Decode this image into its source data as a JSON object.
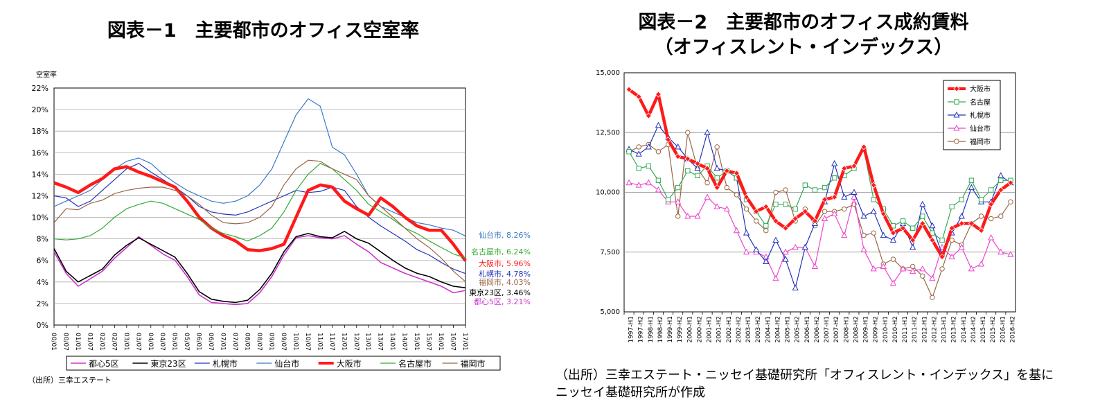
{
  "figure1": {
    "title": "図表－1　主要都市のオフィス空室率",
    "source": "（出所）三幸エステート"
  },
  "figure2": {
    "title_line1": "図表－2　主要都市のオフィス成約賃料",
    "title_line2": "（オフィスレント・インデックス）",
    "source_line1": "（出所）三幸エステート・ニッセイ基礎研究所「オフィスレント・インデックス」を基に",
    "source_line2": "ニッセイ基礎研究所が作成"
  },
  "chart_data": [
    {
      "type": "line",
      "ylabel": "空室率",
      "ylim": [
        0,
        22
      ],
      "yticks": [
        0,
        2,
        4,
        6,
        8,
        10,
        12,
        14,
        16,
        18,
        20,
        22
      ],
      "y_unit": "%",
      "x_tick_labels": [
        "00/01",
        "00/07",
        "01/01",
        "01/07",
        "02/01",
        "02/07",
        "03/01",
        "03/07",
        "04/01",
        "04/07",
        "05/01",
        "05/07",
        "06/01",
        "06/07",
        "07/01",
        "07/07",
        "08/01",
        "08/07",
        "09/01",
        "09/07",
        "10/01",
        "10/07",
        "11/01",
        "11/07",
        "12/01",
        "12/07",
        "13/01",
        "13/07",
        "14/01",
        "14/07",
        "15/01",
        "15/07",
        "16/01",
        "16/07",
        "17/01"
      ],
      "x": [
        2000.0,
        2000.5,
        2001.0,
        2001.5,
        2002.0,
        2002.5,
        2003.0,
        2003.5,
        2004.0,
        2004.5,
        2005.0,
        2005.5,
        2006.0,
        2006.5,
        2007.0,
        2007.5,
        2008.0,
        2008.5,
        2009.0,
        2009.5,
        2010.0,
        2010.5,
        2011.0,
        2011.5,
        2012.0,
        2012.5,
        2013.0,
        2013.5,
        2014.0,
        2014.5,
        2015.0,
        2015.5,
        2016.0,
        2016.5,
        2017.0
      ],
      "grid": true,
      "legend_position": "bottom",
      "end_labels": [
        "仙台市, 8.26%",
        "名古屋市, 6.24%",
        "大阪市, 5.96%",
        "札幌市, 4.78%",
        "福岡市, 4.03%",
        "東京23区, 3.46%",
        "都心5区, 3.21%"
      ],
      "series": [
        {
          "name": "都心5区",
          "color": "#cc33cc",
          "width": 1.6,
          "values": [
            6.8,
            4.8,
            3.6,
            4.3,
            5.0,
            6.2,
            7.2,
            8.2,
            7.4,
            6.6,
            6.0,
            4.5,
            2.8,
            2.1,
            2.0,
            1.9,
            2.0,
            3.0,
            4.5,
            6.5,
            8.1,
            8.3,
            8.1,
            8.0,
            8.3,
            7.5,
            6.8,
            5.8,
            5.3,
            4.8,
            4.4,
            4.0,
            3.6,
            3.0,
            3.21
          ]
        },
        {
          "name": "東京23区",
          "color": "#000000",
          "width": 1.6,
          "values": [
            7.1,
            5.0,
            4.0,
            4.6,
            5.2,
            6.5,
            7.4,
            8.1,
            7.5,
            6.9,
            6.3,
            4.8,
            3.1,
            2.4,
            2.2,
            2.1,
            2.3,
            3.3,
            4.8,
            6.8,
            8.2,
            8.5,
            8.2,
            8.1,
            8.7,
            8.0,
            7.6,
            6.8,
            6.0,
            5.3,
            4.8,
            4.5,
            4.0,
            3.6,
            3.46
          ]
        },
        {
          "name": "札幌市",
          "color": "#2233bb",
          "width": 1.2,
          "values": [
            12.0,
            11.8,
            11.0,
            11.5,
            12.5,
            13.5,
            14.5,
            15.0,
            14.2,
            13.5,
            12.8,
            12.0,
            11.0,
            10.5,
            10.3,
            10.2,
            10.5,
            11.0,
            11.5,
            12.0,
            12.5,
            12.3,
            12.4,
            12.8,
            12.5,
            11.0,
            10.0,
            9.2,
            8.5,
            7.8,
            7.0,
            6.5,
            5.8,
            5.2,
            4.78
          ]
        },
        {
          "name": "仙台市",
          "color": "#3a78c8",
          "width": 1.2,
          "values": [
            11.0,
            11.5,
            12.0,
            12.5,
            13.5,
            14.5,
            15.2,
            15.5,
            15.0,
            14.0,
            13.2,
            12.5,
            12.0,
            11.5,
            11.3,
            11.5,
            12.0,
            13.0,
            14.5,
            17.0,
            19.5,
            21.0,
            20.3,
            16.5,
            15.8,
            14.0,
            12.0,
            11.0,
            10.5,
            10.0,
            9.5,
            9.3,
            9.0,
            8.8,
            8.26
          ]
        },
        {
          "name": "大阪市",
          "color": "#ff1a1a",
          "width": 4.5,
          "values": [
            13.2,
            12.8,
            12.3,
            13.0,
            13.6,
            14.5,
            14.7,
            14.2,
            13.8,
            13.3,
            12.8,
            11.5,
            10.0,
            9.0,
            8.3,
            7.8,
            7.0,
            6.9,
            7.1,
            7.5,
            10.0,
            12.5,
            13.0,
            12.8,
            11.5,
            10.8,
            10.2,
            11.8,
            11.0,
            10.0,
            9.2,
            8.8,
            8.8,
            7.5,
            5.96
          ]
        },
        {
          "name": "名古屋市",
          "color": "#33aa33",
          "width": 1.2,
          "values": [
            8.0,
            7.9,
            8.0,
            8.3,
            9.0,
            10.0,
            10.8,
            11.2,
            11.5,
            11.3,
            10.8,
            10.3,
            9.8,
            9.0,
            8.5,
            8.2,
            7.8,
            8.3,
            9.0,
            10.5,
            12.5,
            14.0,
            15.0,
            14.5,
            13.5,
            12.5,
            11.2,
            10.5,
            9.8,
            9.0,
            8.5,
            7.8,
            7.2,
            6.6,
            6.24
          ]
        },
        {
          "name": "福岡市",
          "color": "#996644",
          "width": 1.2,
          "values": [
            9.5,
            10.8,
            10.7,
            11.3,
            11.6,
            12.2,
            12.5,
            12.7,
            12.8,
            12.8,
            12.5,
            12.0,
            11.2,
            10.2,
            9.5,
            9.4,
            9.5,
            10.0,
            11.0,
            13.0,
            14.5,
            15.3,
            15.2,
            14.5,
            14.0,
            13.5,
            12.0,
            11.0,
            10.0,
            9.0,
            8.0,
            7.2,
            6.2,
            5.0,
            4.03
          ]
        }
      ]
    },
    {
      "type": "line",
      "ylim": [
        5000,
        15000
      ],
      "yticks": [
        5000,
        7500,
        10000,
        12500,
        15000
      ],
      "ytick_labels": [
        "5,000",
        "7,500",
        "10,000",
        "12,500",
        "15,000"
      ],
      "categories": [
        "1997-H1",
        "1997-H2",
        "1998-H1",
        "1998-H2",
        "1999-H1",
        "1999-H2",
        "2000-H1",
        "2000-H2",
        "2001-H1",
        "2001-H2",
        "2002-H1",
        "2002-H2",
        "2003-H1",
        "2003-H2",
        "2004-H1",
        "2004-H2",
        "2005-H1",
        "2005-H2",
        "2006-H1",
        "2006-H2",
        "2007-H1",
        "2007-H2",
        "2008-H1",
        "2008-H2",
        "2009-H1",
        "2009-H2",
        "2010-H1",
        "2010-H2",
        "2011-H1",
        "2011-H2",
        "2012-H1",
        "2012-H2",
        "2013-H1",
        "2013-H2",
        "2014-H1",
        "2014-H2",
        "2015-H1",
        "2015-H2",
        "2016-H1",
        "2016-H2"
      ],
      "grid": true,
      "legend_position": "top-right",
      "series": [
        {
          "name": "大阪市",
          "color": "#ff1a1a",
          "marker": "diamond",
          "width": 4.5,
          "values": [
            14300,
            14000,
            13200,
            14100,
            12200,
            11500,
            11400,
            11200,
            11000,
            10200,
            10900,
            10800,
            9800,
            9200,
            9400,
            8800,
            8500,
            8900,
            9200,
            8800,
            9700,
            9800,
            11000,
            11100,
            11900,
            10300,
            9100,
            8300,
            8500,
            8000,
            8700,
            8000,
            7300,
            8500,
            8700,
            8700,
            8400,
            9500,
            10100,
            10400
          ]
        },
        {
          "name": "名古屋",
          "color": "#33aa55",
          "marker": "square",
          "width": 1.2,
          "values": [
            11700,
            11000,
            11100,
            10500,
            9700,
            10200,
            10900,
            10700,
            11100,
            10600,
            10900,
            10600,
            9700,
            9200,
            8600,
            9500,
            9500,
            9300,
            10300,
            10100,
            10200,
            10600,
            10700,
            11000,
            11800,
            9700,
            9300,
            8600,
            8800,
            8500,
            9000,
            8300,
            8000,
            9400,
            9700,
            10500,
            9700,
            10100,
            10500,
            10500
          ]
        },
        {
          "name": "札幌市",
          "color": "#2233bb",
          "marker": "triangle",
          "width": 1.2,
          "values": [
            11800,
            11600,
            11900,
            12800,
            12300,
            11900,
            11400,
            11000,
            12500,
            11000,
            10900,
            10600,
            8300,
            7600,
            7100,
            8000,
            7200,
            6000,
            7700,
            8700,
            9600,
            11200,
            9800,
            10000,
            9000,
            9200,
            8200,
            8000,
            8700,
            7700,
            9500,
            8600,
            7400,
            8300,
            9000,
            10200,
            9600,
            9600,
            10700,
            10400
          ]
        },
        {
          "name": "仙台市",
          "color": "#ee44cc",
          "marker": "triangle-up",
          "width": 1.2,
          "values": [
            10400,
            10300,
            10400,
            10100,
            9600,
            9600,
            9000,
            9000,
            9800,
            9400,
            9300,
            8400,
            7500,
            7500,
            7300,
            6400,
            7500,
            7700,
            7700,
            6900,
            8900,
            9100,
            8200,
            9800,
            7600,
            6800,
            6900,
            6200,
            6800,
            6700,
            6800,
            6400,
            7700,
            7300,
            7700,
            6800,
            7000,
            8100,
            7500,
            7400
          ]
        },
        {
          "name": "福岡市",
          "color": "#996644",
          "marker": "circle",
          "width": 1.2,
          "values": [
            11700,
            11900,
            12000,
            11700,
            12000,
            9000,
            12500,
            11000,
            10400,
            11900,
            10200,
            9900,
            9300,
            8800,
            8400,
            10000,
            10100,
            8800,
            9300,
            8600,
            9200,
            9200,
            9300,
            9500,
            8200,
            8300,
            7000,
            7200,
            6800,
            6900,
            6500,
            5600,
            6800,
            8000,
            7800,
            8700,
            9000,
            8900,
            9000,
            9600
          ]
        }
      ]
    }
  ]
}
